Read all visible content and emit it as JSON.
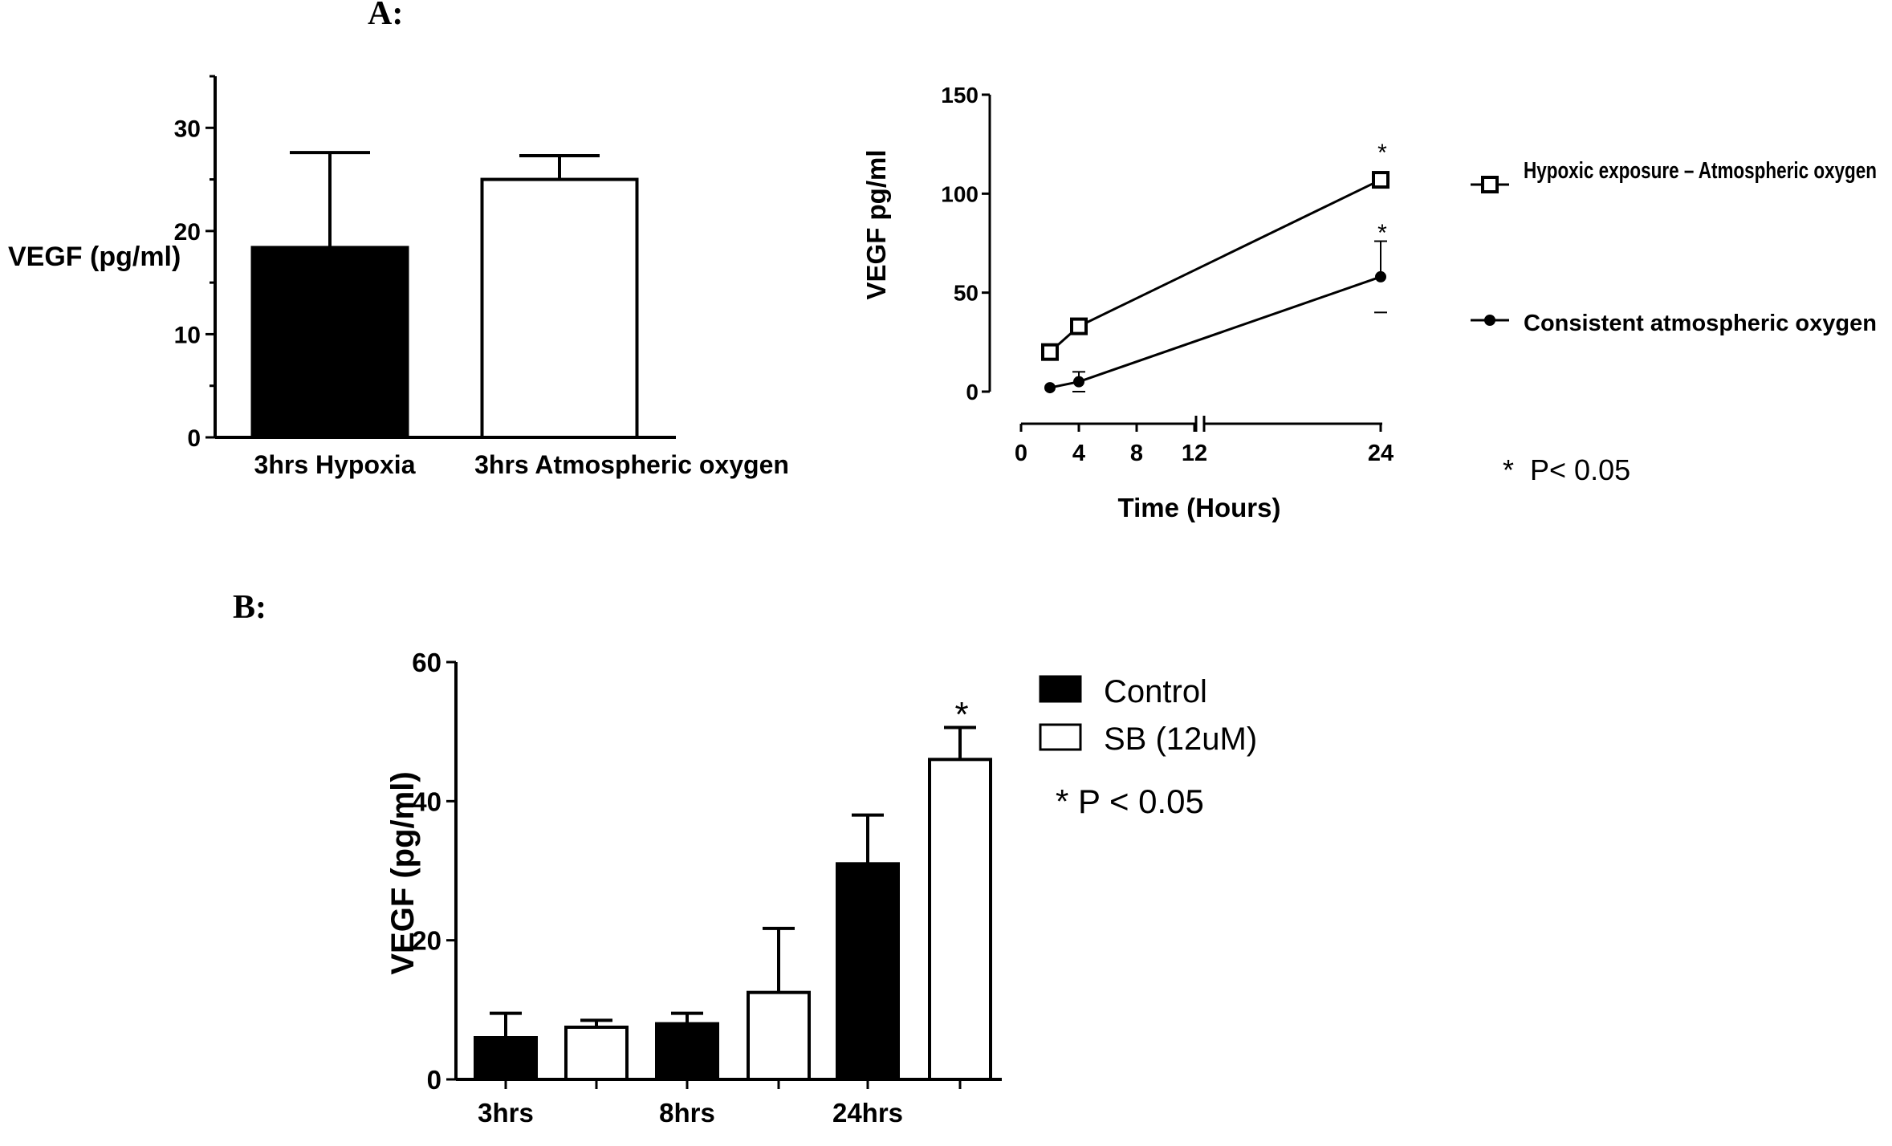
{
  "panel_labels": {
    "a": "A:",
    "b": "B:"
  },
  "colors": {
    "ink": "#000000",
    "paper": "#ffffff"
  },
  "chart_data": [
    {
      "type": "bar",
      "categories": [
        "3hrs Hypoxia",
        "3hrs Atmospheric oxygen"
      ],
      "series": [
        {
          "values": [
            18.4,
            25.0
          ],
          "error": [
            9.2,
            2.3
          ],
          "fills": [
            "#000000",
            "#ffffff"
          ]
        }
      ],
      "ylabel": "VEGF (pg/ml)",
      "ylim": [
        0,
        35
      ],
      "yticks": [
        0,
        10,
        20,
        30
      ],
      "grid": false
    },
    {
      "type": "line",
      "xlabel": "Time (Hours)",
      "ylabel": "VEGF pg/ml",
      "xticks": [
        0,
        4,
        8,
        12,
        24
      ],
      "x_axis_break": "between 12 and 24",
      "ylim": [
        0,
        150
      ],
      "yticks": [
        0,
        50,
        100,
        150
      ],
      "series": [
        {
          "name": "Hypoxic exposure – Atmospheric oxygen",
          "marker": "open-square",
          "x": [
            2,
            4,
            24
          ],
          "y": [
            20,
            33,
            107
          ],
          "error": [
            0,
            0,
            3
          ]
        },
        {
          "name": "Consistent  atmospheric oxygen",
          "marker": "filled-circle",
          "x": [
            2,
            4,
            24
          ],
          "y": [
            2,
            5,
            58
          ],
          "error": [
            0,
            5,
            18
          ]
        }
      ],
      "annotations": {
        "significance_marks": [
          "*",
          "*"
        ],
        "note": "*  P< 0.05"
      },
      "legend": "right",
      "grid": false
    },
    {
      "type": "bar",
      "categories": [
        "3hrs",
        "8hrs",
        "24hrs"
      ],
      "series": [
        {
          "name": "Control",
          "fill": "#000000",
          "values": [
            6.0,
            8.0,
            31.0
          ],
          "error": [
            3.5,
            1.5,
            7.0
          ]
        },
        {
          "name": "SB (12uM)",
          "fill": "#ffffff",
          "values": [
            7.5,
            12.5,
            46.0
          ],
          "error": [
            1.0,
            9.2,
            4.6
          ]
        }
      ],
      "ylabel": "VEGF (pg/ml)",
      "ylim": [
        0,
        60
      ],
      "yticks": [
        0,
        20,
        40,
        60
      ],
      "annotations": {
        "significance_mark": "*",
        "note": "* P < 0.05"
      },
      "legend": "top-right",
      "grid": false
    }
  ]
}
